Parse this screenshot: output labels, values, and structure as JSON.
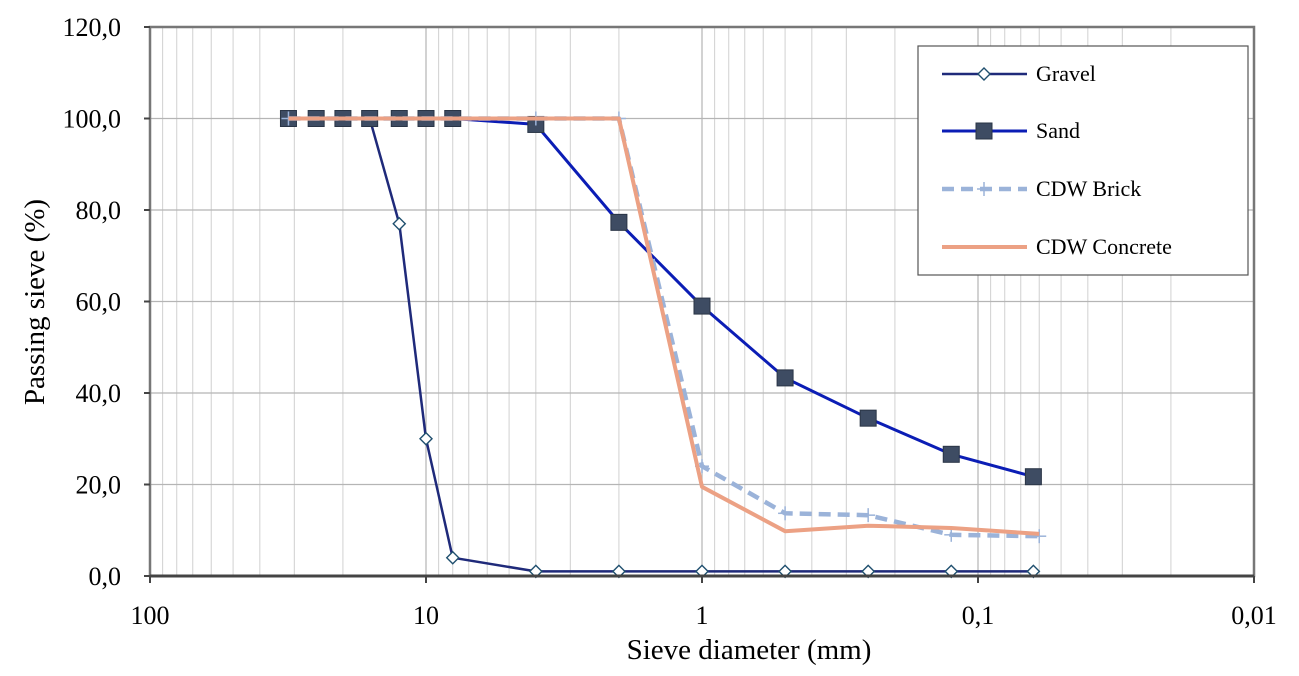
{
  "chart_data": {
    "type": "line",
    "xscale": "log",
    "xreversed": true,
    "xlim": [
      100,
      0.01
    ],
    "ylim": [
      0,
      120
    ],
    "xlabel": "Sieve diameter (mm)",
    "ylabel": "Passing sieve (%)",
    "xticks": [
      {
        "value": 100,
        "label": "100"
      },
      {
        "value": 10,
        "label": "10"
      },
      {
        "value": 1,
        "label": "1"
      },
      {
        "value": 0.1,
        "label": "0,1"
      },
      {
        "value": 0.01,
        "label": "0,01"
      }
    ],
    "yticks": [
      {
        "value": 0,
        "label": "0,0"
      },
      {
        "value": 20,
        "label": "20,0"
      },
      {
        "value": 40,
        "label": "40,0"
      },
      {
        "value": 60,
        "label": "60,0"
      },
      {
        "value": 80,
        "label": "80,0"
      },
      {
        "value": 100,
        "label": "100,0"
      },
      {
        "value": 120,
        "label": "120,0"
      }
    ],
    "grid": true,
    "legend_position": "top-right",
    "series": [
      {
        "name": "Gravel",
        "color": "#1f2a7a",
        "marker": "diamond-open",
        "x": [
          31.5,
          25,
          20,
          16,
          12.5,
          10,
          8,
          4,
          2,
          1,
          0.5,
          0.25,
          0.125,
          0.063
        ],
        "y": [
          100,
          100,
          100,
          100,
          77,
          30,
          4,
          1,
          1,
          1,
          1,
          1,
          1,
          1
        ]
      },
      {
        "name": "Sand",
        "color": "#0b1db5",
        "marker": "square",
        "x": [
          31.5,
          25,
          20,
          16,
          12.5,
          10,
          8,
          4,
          2,
          1,
          0.5,
          0.25,
          0.125,
          0.063
        ],
        "y": [
          100,
          100,
          100,
          100,
          100,
          100,
          100,
          98.7,
          77.3,
          59,
          43.3,
          34.5,
          26.6,
          21.7
        ]
      },
      {
        "name": "CDW Brick",
        "color": "#9bb3d9",
        "marker": "plus",
        "dashed": true,
        "x": [
          31.5,
          4,
          2,
          1,
          0.5,
          0.25,
          0.125,
          0.06
        ],
        "y": [
          100,
          100,
          100,
          24,
          13.7,
          13.3,
          9,
          8.7
        ]
      },
      {
        "name": "CDW Concrete",
        "color": "#eca184",
        "marker": "none",
        "x": [
          31.5,
          2,
          1,
          0.5,
          0.25,
          0.125,
          0.06
        ],
        "y": [
          100,
          100,
          19.5,
          9.8,
          11,
          10.5,
          9.2
        ]
      }
    ]
  }
}
